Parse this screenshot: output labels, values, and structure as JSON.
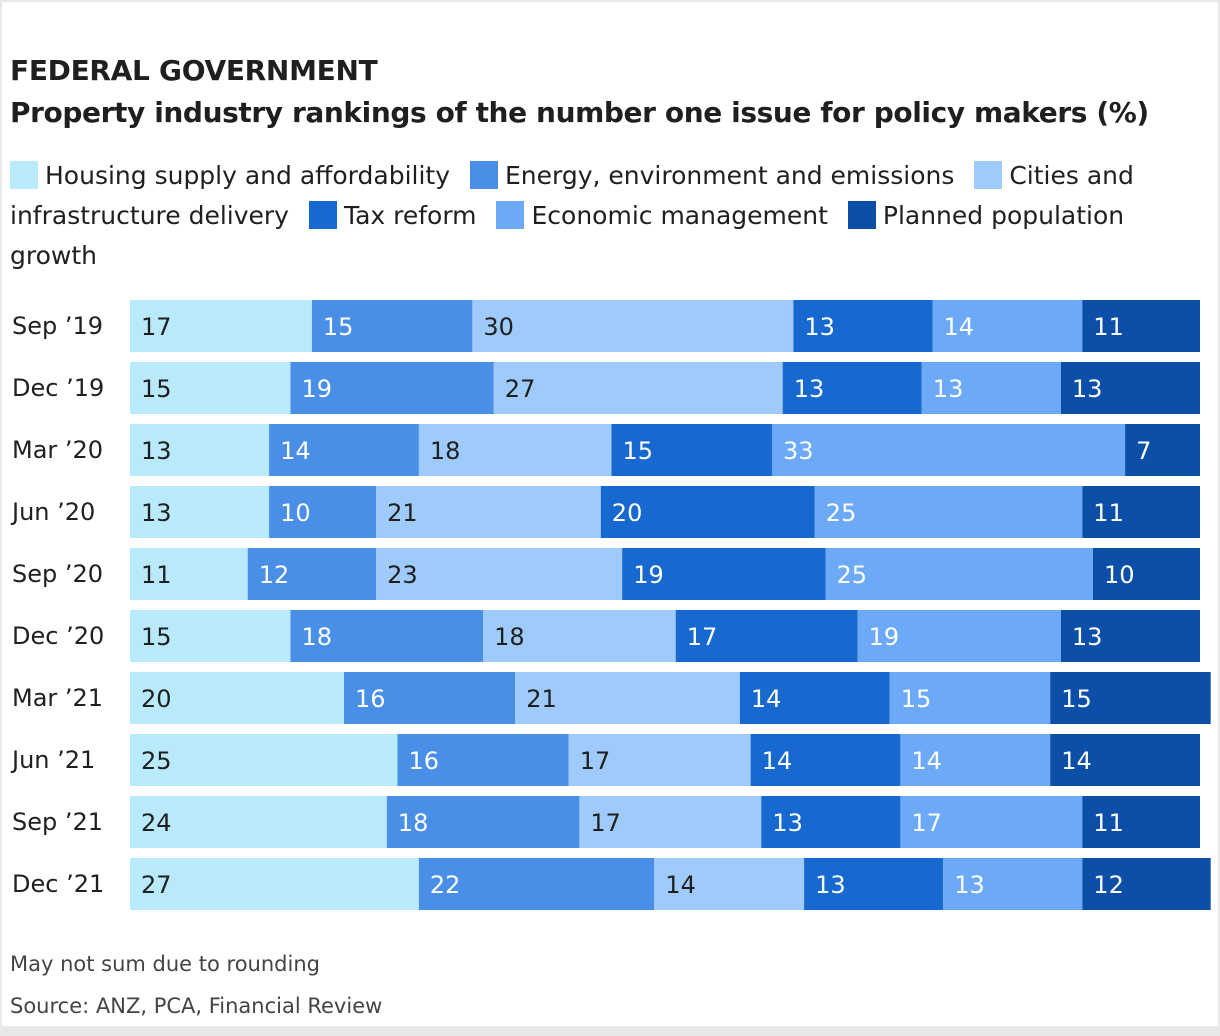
{
  "header": {
    "kicker": "FEDERAL GOVERNMENT",
    "title": "Property industry rankings of the number one issue for policy makers (%)"
  },
  "footer": {
    "note": "May not sum due to rounding",
    "source": "Source: ANZ, PCA, Financial Review"
  },
  "chart_data": {
    "type": "bar",
    "orientation": "horizontal",
    "stacked": true,
    "title": "Property industry rankings of the number one issue for policy makers (%)",
    "categories": [
      "Sep ’19",
      "Dec ’19",
      "Mar ’20",
      "Jun ’20",
      "Sep ’20",
      "Dec ’20",
      "Mar ’21",
      "Jun ’21",
      "Sep ’21",
      "Dec ’21"
    ],
    "legend_position": "top",
    "grid": false,
    "series": [
      {
        "name": "Housing supply and affordability",
        "color": "#b9eafc",
        "text_color": "#1f1f1f",
        "values": [
          17,
          15,
          13,
          13,
          11,
          15,
          20,
          25,
          24,
          27
        ]
      },
      {
        "name": "Energy, environment and emissions",
        "color": "#4a8fe7",
        "text_color": "#ffffff",
        "values": [
          15,
          19,
          14,
          10,
          12,
          18,
          16,
          16,
          18,
          22
        ]
      },
      {
        "name": "Cities and infrastructure delivery",
        "color": "#9ecbfb",
        "text_color": "#1f1f1f",
        "values": [
          30,
          27,
          18,
          21,
          23,
          18,
          21,
          17,
          17,
          14
        ]
      },
      {
        "name": "Tax reform",
        "color": "#1769cf",
        "text_color": "#ffffff",
        "values": [
          13,
          13,
          15,
          20,
          19,
          17,
          14,
          14,
          13,
          13
        ]
      },
      {
        "name": "Economic management",
        "color": "#6ca9f7",
        "text_color": "#ffffff",
        "values": [
          14,
          13,
          33,
          25,
          25,
          19,
          15,
          14,
          17,
          13
        ]
      },
      {
        "name": "Planned population growth",
        "color": "#0b4fa8",
        "text_color": "#ffffff",
        "values": [
          11,
          13,
          7,
          11,
          10,
          13,
          15,
          14,
          11,
          12
        ]
      }
    ]
  }
}
